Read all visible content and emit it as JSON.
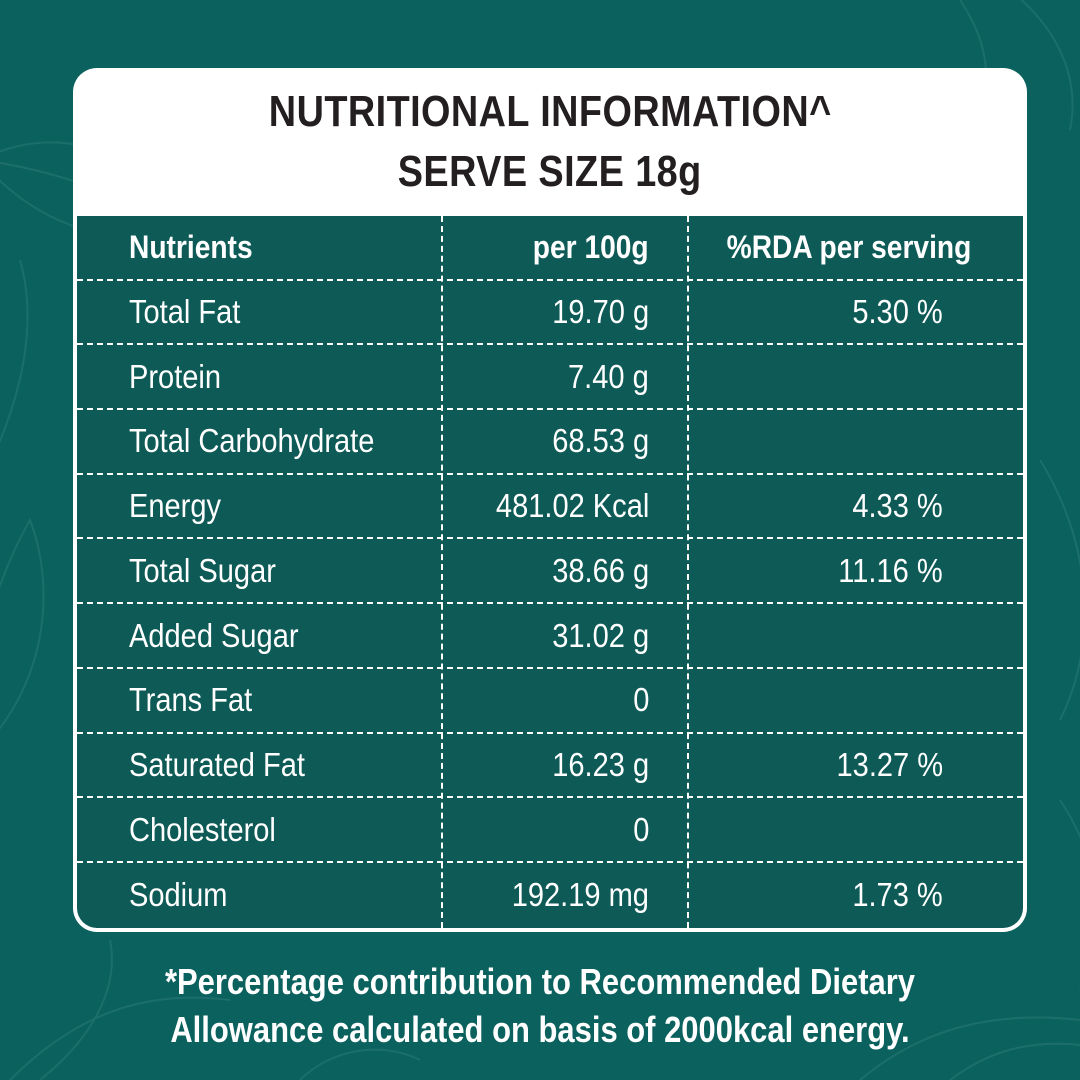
{
  "colors": {
    "background": "#0b615d",
    "table_background": "#0d5a56",
    "card": "#ffffff",
    "title_text": "#231f20",
    "table_text": "#ffffff"
  },
  "header": {
    "title": "NUTRITIONAL INFORMATION^",
    "serve_size": "SERVE SIZE 18g"
  },
  "table": {
    "columns": [
      "Nutrients",
      "per 100g",
      "%RDA per serving"
    ],
    "rows": [
      {
        "nutrient": "Total Fat",
        "per_100g": "19.70 g",
        "rda": "5.30 %"
      },
      {
        "nutrient": "Protein",
        "per_100g": "7.40 g",
        "rda": ""
      },
      {
        "nutrient": "Total Carbohydrate",
        "per_100g": "68.53 g",
        "rda": ""
      },
      {
        "nutrient": "Energy",
        "per_100g": "481.02 Kcal",
        "rda": "4.33 %"
      },
      {
        "nutrient": "Total Sugar",
        "per_100g": "38.66 g",
        "rda": "11.16 %"
      },
      {
        "nutrient": "Added Sugar",
        "per_100g": "31.02 g",
        "rda": ""
      },
      {
        "nutrient": "Trans Fat",
        "per_100g": "0",
        "rda": ""
      },
      {
        "nutrient": "Saturated Fat",
        "per_100g": "16.23 g",
        "rda": "13.27 %"
      },
      {
        "nutrient": "Cholesterol",
        "per_100g": "0",
        "rda": ""
      },
      {
        "nutrient": "Sodium",
        "per_100g": "192.19 mg",
        "rda": "1.73 %"
      }
    ]
  },
  "footnote": {
    "line1": "*Percentage contribution to Recommended Dietary",
    "line2": "Allowance calculated on basis of 2000kcal energy."
  }
}
